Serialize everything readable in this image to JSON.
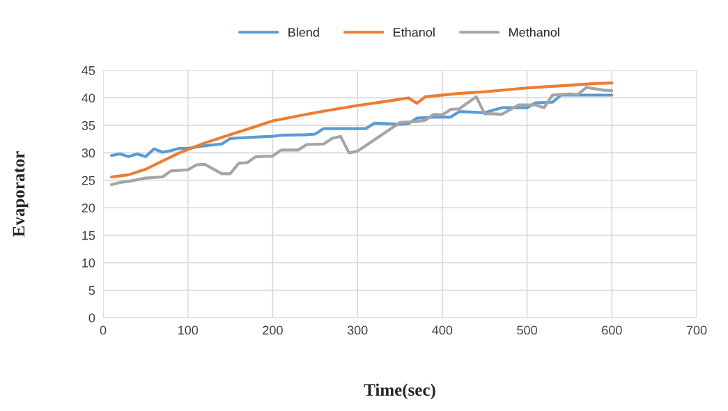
{
  "chart_data": {
    "type": "line",
    "xlabel": "Time(sec)",
    "ylabel": "Evaporator",
    "xlim": [
      0,
      700
    ],
    "xticks": [
      0,
      100,
      200,
      300,
      400,
      500,
      600,
      700
    ],
    "ylim": [
      0,
      45
    ],
    "yticks": [
      0,
      5,
      10,
      15,
      20,
      25,
      30,
      35,
      40,
      45
    ],
    "grid": true,
    "legend": "top",
    "marker": "none",
    "line_style": "solid",
    "series": [
      {
        "name": "Blend",
        "color": "#5b9bd5",
        "x": [
          10,
          20,
          30,
          40,
          50,
          60,
          70,
          80,
          90,
          100,
          120,
          140,
          150,
          160,
          200,
          210,
          240,
          250,
          260,
          280,
          300,
          310,
          320,
          350,
          360,
          370,
          390,
          410,
          420,
          450,
          470,
          500,
          510,
          530,
          540,
          600
        ],
        "values": [
          29.5,
          29.8,
          29.3,
          29.8,
          29.3,
          30.7,
          30.1,
          30.4,
          30.8,
          30.8,
          31.3,
          31.6,
          32.6,
          32.7,
          33.0,
          33.2,
          33.3,
          33.4,
          34.4,
          34.4,
          34.4,
          34.4,
          35.4,
          35.2,
          35.3,
          36.3,
          36.5,
          36.5,
          37.5,
          37.3,
          38.2,
          38.2,
          39.1,
          39.2,
          40.5,
          40.5
        ]
      },
      {
        "name": "Ethanol",
        "color": "#ed7d31",
        "x": [
          10,
          30,
          50,
          70,
          90,
          100,
          120,
          150,
          170,
          200,
          250,
          280,
          300,
          340,
          360,
          370,
          380,
          420,
          450,
          500,
          550,
          580,
          600
        ],
        "values": [
          25.6,
          26.0,
          27.0,
          28.5,
          30.0,
          30.6,
          31.8,
          33.3,
          34.3,
          35.8,
          37.3,
          38.1,
          38.6,
          39.5,
          40.0,
          39.0,
          40.2,
          40.8,
          41.1,
          41.8,
          42.3,
          42.6,
          42.7
        ]
      },
      {
        "name": "Methanol",
        "color": "#a5a5a5",
        "x": [
          10,
          20,
          30,
          50,
          70,
          80,
          100,
          110,
          120,
          140,
          150,
          160,
          170,
          180,
          200,
          210,
          230,
          240,
          260,
          270,
          280,
          290,
          300,
          350,
          370,
          380,
          390,
          400,
          410,
          420,
          440,
          450,
          460,
          470,
          490,
          510,
          520,
          530,
          550,
          560,
          570,
          590,
          600
        ],
        "values": [
          24.2,
          24.6,
          24.8,
          25.4,
          25.6,
          26.7,
          26.9,
          27.8,
          27.9,
          26.2,
          26.2,
          28.1,
          28.2,
          29.3,
          29.4,
          30.5,
          30.5,
          31.5,
          31.6,
          32.6,
          33.0,
          30.0,
          30.3,
          35.5,
          35.7,
          35.9,
          37.0,
          36.9,
          37.9,
          38.0,
          40.2,
          37.1,
          37.1,
          37.0,
          38.7,
          38.7,
          38.2,
          40.5,
          40.7,
          40.6,
          41.9,
          41.4,
          41.3
        ]
      }
    ]
  }
}
